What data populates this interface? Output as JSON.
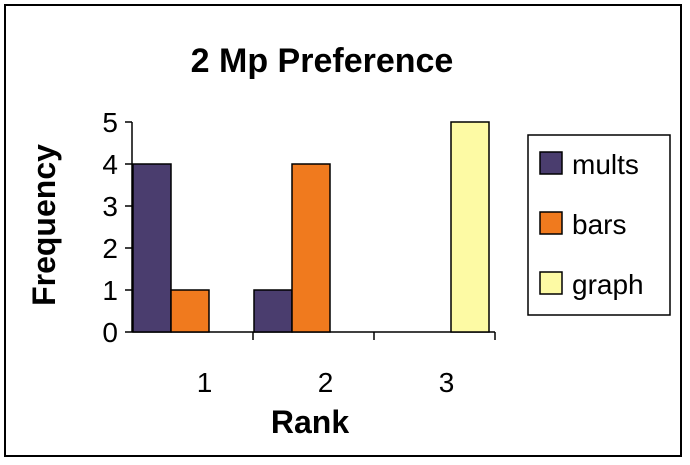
{
  "chart_data": {
    "type": "bar",
    "title": "2 Mp Preference",
    "xlabel": "Rank",
    "ylabel": "Frequency",
    "categories": [
      "1",
      "2",
      "3"
    ],
    "series": [
      {
        "name": "mults",
        "values": [
          4,
          1,
          0
        ],
        "color": "#4a3d6e"
      },
      {
        "name": "bars",
        "values": [
          1,
          4,
          0
        ],
        "color": "#f07a1e"
      },
      {
        "name": "graph",
        "values": [
          0,
          0,
          5
        ],
        "color": "#fdfaa4"
      }
    ],
    "ylim": [
      0,
      5
    ],
    "yticks": [
      "0",
      "1",
      "2",
      "3",
      "4",
      "5"
    ],
    "grid": false,
    "legend_position": "right"
  }
}
